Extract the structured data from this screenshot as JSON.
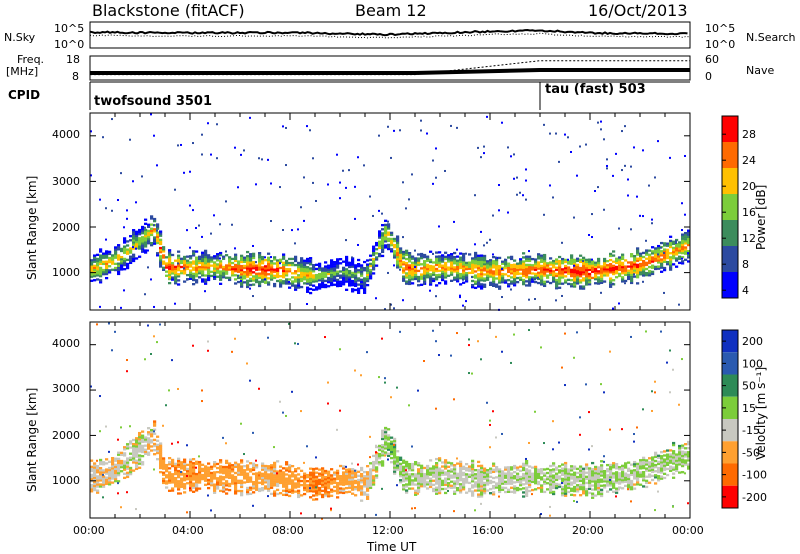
{
  "header": {
    "station": "Blackstone (fitACF)",
    "beam": "Beam 12",
    "date": "16/Oct/2013"
  },
  "noise_panel": {
    "left_label": "N.Sky",
    "right_label": "N.Search",
    "left_ticks": [
      "10^5",
      "10^0"
    ],
    "right_ticks": [
      "10^5",
      "10^0"
    ]
  },
  "freq_panel": {
    "left_label": "Freq.",
    "left_unit": "[MHz]",
    "right_label": "Nave",
    "left_ticks": [
      "18",
      "8"
    ],
    "right_ticks": [
      "60",
      "0"
    ]
  },
  "cpid_panel": {
    "label": "CPID",
    "modes": [
      {
        "name": "twofsound 3501",
        "start_hour": 0
      },
      {
        "name": "tau (fast) 503",
        "start_hour": 18
      }
    ]
  },
  "power_panel": {
    "ylabel": "Slant Range [km]",
    "yticks": [
      "4000",
      "3000",
      "2000",
      "1000"
    ],
    "colorbar_label": "Power [dB]",
    "colorbar_ticks": [
      "28",
      "24",
      "20",
      "16",
      "12",
      "8",
      "4"
    ],
    "colors": [
      "#ff0000",
      "#ff6a00",
      "#ffc000",
      "#7ccd3a",
      "#3c8c5c",
      "#2c4aa0",
      "#0000ff"
    ]
  },
  "velocity_panel": {
    "ylabel": "Slant Range [km]",
    "yticks": [
      "4000",
      "3000",
      "2000",
      "1000"
    ],
    "colorbar_label": "Velocity [m s⁻¹]",
    "colorbar_ticks": [
      "200",
      "100",
      "50",
      "15",
      "-15",
      "-50",
      "-100",
      "-200"
    ],
    "colors": [
      "#1030c0",
      "#2a5ab0",
      "#2e8b57",
      "#7ccd3a",
      "#c8c8c0",
      "#ffa030",
      "#ff6a00",
      "#ff0000"
    ]
  },
  "x_axis": {
    "ticks": [
      "00:00",
      "04:00",
      "08:00",
      "12:00",
      "16:00",
      "20:00",
      "00:00"
    ],
    "label": "Time UT"
  },
  "chart_data": {
    "type": "heatmap",
    "title": "Blackstone (fitACF)",
    "subtitle": "Beam 12",
    "date": "16/Oct/2013",
    "xlabel": "Time UT",
    "ylabel": "Slant Range [km]",
    "xlim_hours": [
      0,
      24
    ],
    "ylim_km": [
      180,
      4500
    ],
    "panels": [
      {
        "name": "Power",
        "colorbar_label": "Power [dB]",
        "colorbar_range": [
          0,
          30
        ],
        "echo_band": {
          "hours": [
            0,
            1,
            2,
            2.5,
            3,
            4,
            5,
            6,
            7,
            8,
            9,
            10,
            11,
            11.8,
            12.5,
            13,
            14,
            16,
            18,
            20,
            22,
            24
          ],
          "center_km": [
            1050,
            1250,
            1700,
            1950,
            1100,
            1100,
            1100,
            1050,
            1050,
            1000,
            900,
            1000,
            900,
            1900,
            1100,
            1050,
            1100,
            1000,
            1050,
            1000,
            1150,
            1600
          ],
          "peak_db": [
            22,
            20,
            18,
            22,
            26,
            24,
            22,
            26,
            28,
            24,
            18,
            12,
            16,
            20,
            26,
            24,
            22,
            24,
            26,
            28,
            26,
            22
          ]
        }
      },
      {
        "name": "Velocity",
        "colorbar_label": "Velocity [m s⁻¹]",
        "colorbar_range": [
          -200,
          200
        ],
        "echo_band": {
          "hours": [
            0,
            2,
            3,
            5,
            7,
            9,
            11,
            12,
            13,
            16,
            18,
            20,
            22,
            24
          ],
          "velocity_ms": [
            -30,
            -10,
            -60,
            -60,
            -40,
            -80,
            -30,
            20,
            -10,
            -10,
            0,
            0,
            0,
            0
          ]
        }
      }
    ],
    "sky_noise_log10": {
      "hours": [
        0,
        4,
        8,
        12,
        16,
        18,
        20,
        24
      ],
      "values": [
        3.2,
        3.0,
        3.1,
        2.6,
        3.4,
        3.6,
        3.0,
        2.8
      ]
    },
    "frequency_MHz": {
      "hours": [
        0,
        13,
        18,
        24
      ],
      "values": [
        10.5,
        10.5,
        12,
        12
      ]
    },
    "nave": {
      "hours": [
        0,
        13,
        18,
        24
      ],
      "values": [
        12,
        12,
        50,
        50
      ]
    }
  }
}
